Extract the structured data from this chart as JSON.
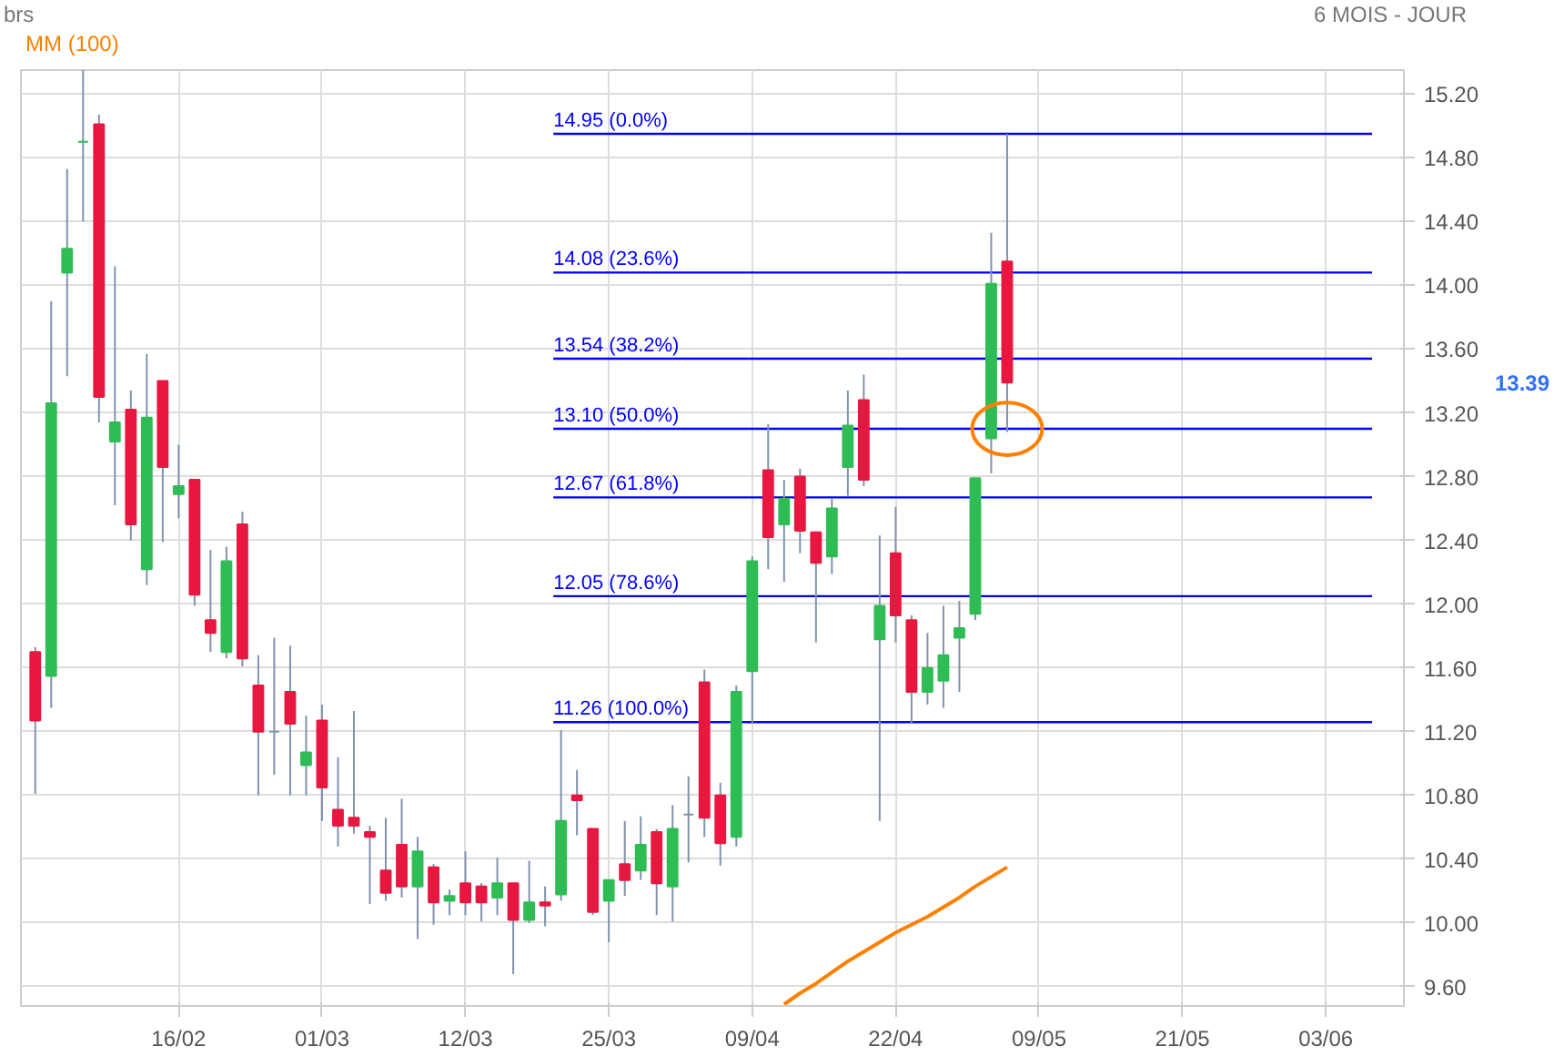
{
  "chart_data": {
    "type": "candlestick",
    "title": "brs",
    "subtitle": "6 MOIS - JOUR",
    "categories": [
      null,
      null,
      null,
      null,
      null,
      null,
      null,
      null,
      null,
      "16/02",
      null,
      null,
      null,
      null,
      null,
      null,
      null,
      null,
      "01/03",
      null,
      null,
      null,
      null,
      null,
      null,
      null,
      null,
      "12/03",
      null,
      null,
      null,
      null,
      null,
      null,
      null,
      null,
      "25/03",
      null,
      null,
      null,
      null,
      null,
      null,
      null,
      null,
      "09/04",
      null,
      null,
      null,
      null,
      null,
      null,
      null,
      null,
      "22/04",
      null,
      null,
      null,
      null,
      null,
      null,
      null,
      null,
      "09/05",
      null,
      null,
      null,
      null,
      null,
      null,
      null,
      null,
      "21/05",
      null,
      null,
      null,
      null,
      null,
      null,
      null,
      null,
      "03/06"
    ],
    "ohlc": [
      [
        11.7,
        11.73,
        10.81,
        11.27
      ],
      [
        11.55,
        13.9,
        11.35,
        13.26
      ],
      [
        14.08,
        14.73,
        13.43,
        14.23
      ],
      [
        14.9,
        15.35,
        14.4,
        14.9
      ],
      [
        15.01,
        15.07,
        13.14,
        13.3
      ],
      [
        13.02,
        14.12,
        12.62,
        13.14
      ],
      [
        13.22,
        13.34,
        12.4,
        12.5
      ],
      [
        12.22,
        13.57,
        12.12,
        13.17
      ],
      [
        13.4,
        13.4,
        12.39,
        12.86
      ],
      [
        12.69,
        13.0,
        12.54,
        12.74
      ],
      [
        12.78,
        12.78,
        11.99,
        12.06
      ],
      [
        11.9,
        12.34,
        11.7,
        11.82
      ],
      [
        11.7,
        12.36,
        11.66,
        12.27
      ],
      [
        12.5,
        12.58,
        11.61,
        11.66
      ],
      [
        11.49,
        11.68,
        10.8,
        11.2
      ],
      [
        11.2,
        11.79,
        10.93,
        11.2
      ],
      [
        11.45,
        11.74,
        10.8,
        11.25
      ],
      [
        10.99,
        11.3,
        10.8,
        11.07
      ],
      [
        11.27,
        11.37,
        10.64,
        10.85
      ],
      [
        10.71,
        11.04,
        10.48,
        10.61
      ],
      [
        10.66,
        11.33,
        10.56,
        10.61
      ],
      [
        10.57,
        10.61,
        10.12,
        10.54
      ],
      [
        10.33,
        10.66,
        10.14,
        10.19
      ],
      [
        10.49,
        10.78,
        10.16,
        10.23
      ],
      [
        10.23,
        10.54,
        9.9,
        10.45
      ],
      [
        10.35,
        10.37,
        9.99,
        10.13
      ],
      [
        10.14,
        10.21,
        10.05,
        10.17
      ],
      [
        10.25,
        10.45,
        10.05,
        10.13
      ],
      [
        10.23,
        10.25,
        10.01,
        10.13
      ],
      [
        10.16,
        10.41,
        10.05,
        10.25
      ],
      [
        10.25,
        10.25,
        9.68,
        10.02
      ],
      [
        10.02,
        10.39,
        10.0,
        10.13
      ],
      [
        10.13,
        10.23,
        9.98,
        10.11
      ],
      [
        10.18,
        11.21,
        10.14,
        10.64
      ],
      [
        10.8,
        10.96,
        10.55,
        10.77
      ],
      [
        10.59,
        10.59,
        10.05,
        10.07
      ],
      [
        10.14,
        10.27,
        9.88,
        10.27
      ],
      [
        10.37,
        10.64,
        10.17,
        10.27
      ],
      [
        10.33,
        10.67,
        10.27,
        10.49
      ],
      [
        10.57,
        10.59,
        10.05,
        10.25
      ],
      [
        10.23,
        10.74,
        10.01,
        10.59
      ],
      [
        10.68,
        10.92,
        10.38,
        10.68
      ],
      [
        11.51,
        11.59,
        10.54,
        10.66
      ],
      [
        10.8,
        10.88,
        10.36,
        10.5
      ],
      [
        10.54,
        11.49,
        10.48,
        11.45
      ],
      [
        11.58,
        12.3,
        11.25,
        12.27
      ],
      [
        12.84,
        13.13,
        12.22,
        12.42
      ],
      [
        12.5,
        12.78,
        12.14,
        12.66
      ],
      [
        12.8,
        12.85,
        12.32,
        12.46
      ],
      [
        12.45,
        12.45,
        11.76,
        12.26
      ],
      [
        12.3,
        12.66,
        12.19,
        12.6
      ],
      [
        12.86,
        13.34,
        12.68,
        13.12
      ],
      [
        13.28,
        13.44,
        12.74,
        12.78
      ],
      [
        11.78,
        12.43,
        10.64,
        11.99
      ],
      [
        12.32,
        12.61,
        11.76,
        11.93
      ],
      [
        11.9,
        11.93,
        11.25,
        11.45
      ],
      [
        11.45,
        11.82,
        11.37,
        11.6
      ],
      [
        11.52,
        11.99,
        11.35,
        11.68
      ],
      [
        11.79,
        12.02,
        11.45,
        11.85
      ],
      [
        11.94,
        12.79,
        11.9,
        12.79
      ],
      [
        13.04,
        14.33,
        12.82,
        14.01
      ],
      [
        14.15,
        14.95,
        13.08,
        13.39
      ],
      null,
      null,
      null,
      null,
      null,
      null,
      null,
      null,
      null,
      null,
      null,
      null,
      null,
      null,
      null,
      null,
      null,
      null,
      null,
      null
    ],
    "colors": [
      "#e8173f",
      "#2ebd54",
      "#2ebd54",
      "#2ebd54",
      "#e8173f",
      "#2ebd54",
      "#e8173f",
      "#2ebd54",
      "#e8173f",
      "#2ebd54",
      "#e8173f",
      "#e8173f",
      "#2ebd54",
      "#e8173f",
      "#e8173f",
      "#7f93ad",
      "#e8173f",
      "#2ebd54",
      "#e8173f",
      "#e8173f",
      "#e8173f",
      "#e8173f",
      "#e8173f",
      "#e8173f",
      "#2ebd54",
      "#e8173f",
      "#2ebd54",
      "#e8173f",
      "#e8173f",
      "#2ebd54",
      "#e8173f",
      "#2ebd54",
      "#e8173f",
      "#2ebd54",
      "#e8173f",
      "#e8173f",
      "#2ebd54",
      "#e8173f",
      "#2ebd54",
      "#e8173f",
      "#2ebd54",
      "#7f93ad",
      "#e8173f",
      "#e8173f",
      "#2ebd54",
      "#2ebd54",
      "#e8173f",
      "#2ebd54",
      "#e8173f",
      "#e8173f",
      "#2ebd54",
      "#2ebd54",
      "#e8173f",
      "#2ebd54",
      "#e8173f",
      "#e8173f",
      "#2ebd54",
      "#2ebd54",
      "#2ebd54",
      "#2ebd54",
      "#2ebd54",
      "#e8173f",
      null,
      null,
      null,
      null,
      null,
      null,
      null,
      null,
      null,
      null,
      null,
      null,
      null,
      null,
      null,
      null,
      null,
      null,
      null,
      null
    ],
    "series": [
      {
        "type": "line",
        "name": "MM (100)",
        "color": "#ff8000",
        "values": [
          null,
          null,
          null,
          null,
          null,
          null,
          null,
          null,
          null,
          null,
          null,
          null,
          null,
          null,
          null,
          null,
          null,
          null,
          null,
          null,
          null,
          null,
          null,
          null,
          null,
          null,
          null,
          null,
          null,
          null,
          null,
          null,
          null,
          null,
          null,
          null,
          null,
          null,
          null,
          null,
          null,
          null,
          null,
          null,
          null,
          null,
          null,
          9.49,
          9.56,
          9.62,
          9.69,
          9.76,
          9.82,
          9.88,
          9.94,
          9.99,
          10.04,
          10.1,
          10.16,
          10.23,
          10.29,
          10.35,
          null,
          null,
          null,
          null,
          null,
          null,
          null,
          null,
          null,
          null,
          null,
          null,
          null,
          null,
          null,
          null,
          null,
          null,
          null,
          null
        ]
      }
    ],
    "ylim": [
      9.48,
      15.35
    ],
    "yticks": [
      {
        "value": 9.6,
        "label": "9.60"
      },
      {
        "value": 10.0,
        "label": "10.00"
      },
      {
        "value": 10.4,
        "label": "10.40"
      },
      {
        "value": 10.8,
        "label": "10.80"
      },
      {
        "value": 11.2,
        "label": "11.20"
      },
      {
        "value": 11.6,
        "label": "11.60"
      },
      {
        "value": 12.0,
        "label": "12.00"
      },
      {
        "value": 12.4,
        "label": "12.40"
      },
      {
        "value": 12.8,
        "label": "12.80"
      },
      {
        "value": 13.2,
        "label": "13.20"
      },
      {
        "value": 13.6,
        "label": "13.60"
      },
      {
        "value": 14.0,
        "label": "14.00"
      },
      {
        "value": 14.4,
        "label": "14.40"
      },
      {
        "value": 14.8,
        "label": "14.80"
      },
      {
        "value": 15.2,
        "label": "15.20"
      }
    ],
    "ref_lines": [
      {
        "axis": "y",
        "value": 14.95,
        "label": "14.95 (0.0%)",
        "color": "#0000ff"
      },
      {
        "axis": "y",
        "value": 14.08,
        "label": "14.08 (23.6%)",
        "color": "#0000ff"
      },
      {
        "axis": "y",
        "value": 13.54,
        "label": "13.54 (38.2%)",
        "color": "#0000ff"
      },
      {
        "axis": "y",
        "value": 13.1,
        "label": "13.10 (50.0%)",
        "color": "#0000ff"
      },
      {
        "axis": "y",
        "value": 12.67,
        "label": "12.67 (61.8%)",
        "color": "#0000ff"
      },
      {
        "axis": "y",
        "value": 12.05,
        "label": "12.05 (78.6%)",
        "color": "#0000ff"
      },
      {
        "axis": "y",
        "value": 11.26,
        "label": "11.26 (100.0%)",
        "color": "#0000ff"
      }
    ],
    "annotations": [
      "13.39"
    ],
    "legend": "top left",
    "grid": true
  }
}
